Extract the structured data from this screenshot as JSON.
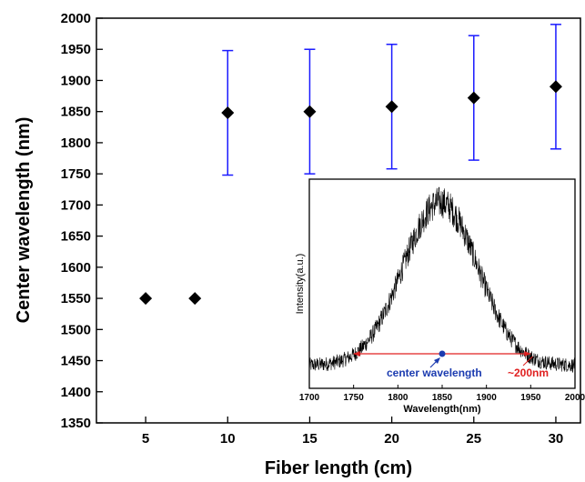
{
  "chart_data": [
    {
      "type": "scatter",
      "xlabel": "Fiber length (cm)",
      "ylabel": "Center wavelength (nm)",
      "xlim": [
        2,
        31.5
      ],
      "ylim": [
        1350,
        2000
      ],
      "x_ticks": [
        5,
        10,
        15,
        20,
        25,
        30
      ],
      "y_ticks": [
        1350,
        1400,
        1450,
        1500,
        1550,
        1600,
        1650,
        1700,
        1750,
        1800,
        1850,
        1900,
        1950,
        2000
      ],
      "marker": "diamond",
      "marker_color": "#000000",
      "errorbar_color": "#1a1aff",
      "points": [
        {
          "x": 5,
          "y": 1550,
          "yerr": null
        },
        {
          "x": 8,
          "y": 1550,
          "yerr": null
        },
        {
          "x": 10,
          "y": 1848,
          "yerr": 100
        },
        {
          "x": 15,
          "y": 1850,
          "yerr": 100
        },
        {
          "x": 20,
          "y": 1858,
          "yerr": 100
        },
        {
          "x": 25,
          "y": 1872,
          "yerr": 100
        },
        {
          "x": 30,
          "y": 1890,
          "yerr": 100
        }
      ]
    },
    {
      "type": "line",
      "xlabel": "Wavelength(nm)",
      "ylabel": "Intensity(a.u.)",
      "xlim": [
        1700,
        2000
      ],
      "x_ticks": [
        1700,
        1750,
        1800,
        1850,
        1900,
        1950,
        2000
      ],
      "line_color": "#000000",
      "spectrum": {
        "peak_center": 1848,
        "peak_width": 42,
        "peak_height": 0.78,
        "baseline": 0.11,
        "noise": 0.035
      },
      "annotations": {
        "center_label": "center wavelength",
        "center_x": 1850,
        "width_label": "~200nm",
        "width_range": [
          1750,
          1950
        ],
        "center_color": "#1b3bb0",
        "width_color": "#e02020"
      }
    }
  ]
}
